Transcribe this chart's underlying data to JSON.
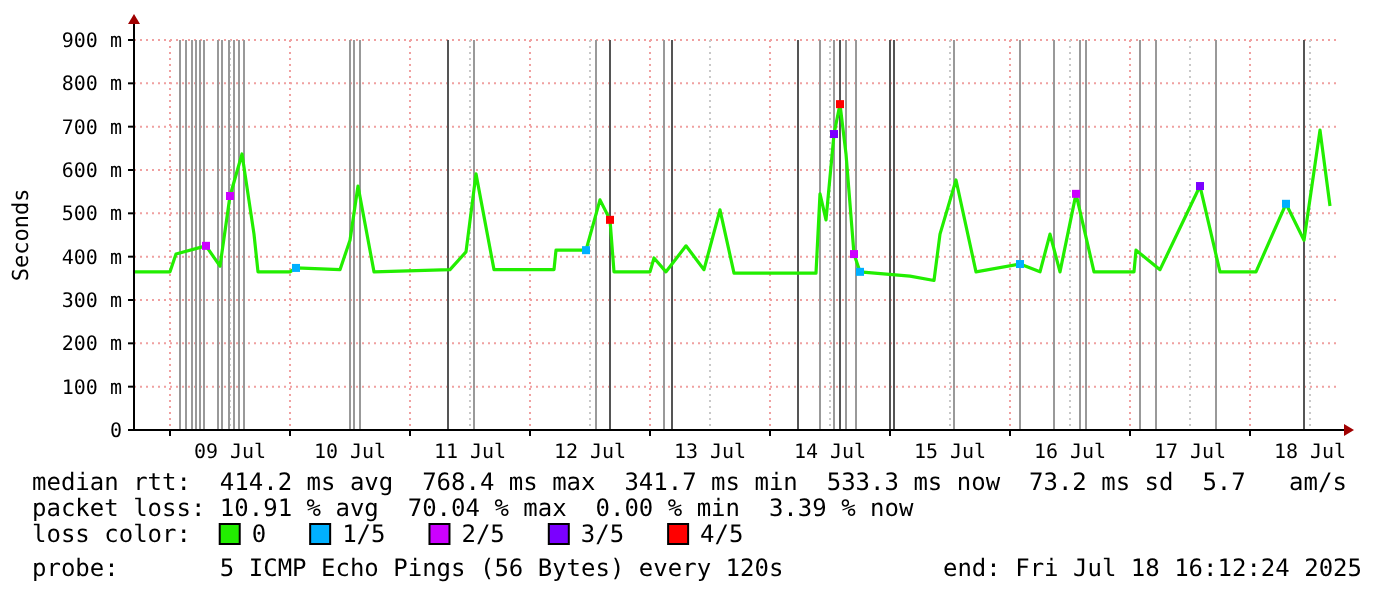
{
  "chart_data": {
    "type": "line",
    "ylabel": "Seconds",
    "xlim": [
      "2025-07-08T16:48",
      "2025-07-18T18:00"
    ],
    "xticks": [
      {
        "value": "2025-07-09T12:00",
        "label": "09 Jul"
      },
      {
        "value": "2025-07-10T12:00",
        "label": "10 Jul"
      },
      {
        "value": "2025-07-11T12:00",
        "label": "11 Jul"
      },
      {
        "value": "2025-07-12T12:00",
        "label": "12 Jul"
      },
      {
        "value": "2025-07-13T12:00",
        "label": "13 Jul"
      },
      {
        "value": "2025-07-14T12:00",
        "label": "14 Jul"
      },
      {
        "value": "2025-07-15T12:00",
        "label": "15 Jul"
      },
      {
        "value": "2025-07-16T12:00",
        "label": "16 Jul"
      },
      {
        "value": "2025-07-17T12:00",
        "label": "17 Jul"
      },
      {
        "value": "2025-07-18T12:00",
        "label": "18 Jul"
      }
    ],
    "ylim": [
      0,
      900
    ],
    "yticks": [
      0,
      {
        "value": 100,
        "label": "100 m"
      },
      {
        "value": 200,
        "label": "200 m"
      },
      {
        "value": 300,
        "label": "300 m"
      },
      {
        "value": 400,
        "label": "400 m"
      },
      {
        "value": 500,
        "label": "500 m"
      },
      {
        "value": 600,
        "label": "600 m"
      },
      {
        "value": 700,
        "label": "700 m"
      },
      {
        "value": 800,
        "label": "800 m"
      },
      {
        "value": 900,
        "label": "900 m"
      }
    ],
    "grid": true,
    "legend": "bottom",
    "legend_title": "loss color:",
    "series": [
      {
        "name": "0",
        "type": "line",
        "color": "#22ee00",
        "x": [
          "2025-07-08T16:48",
          "2025-07-09T00:00",
          "2025-07-09T01:12",
          "2025-07-09T07:12",
          "2025-07-09T10:00",
          "2025-07-09T12:00",
          "2025-07-09T14:24",
          "2025-07-09T16:48",
          "2025-07-09T17:36",
          "2025-07-10T00:00",
          "2025-07-10T01:12",
          "2025-07-10T10:00",
          "2025-07-10T12:00",
          "2025-07-10T13:36",
          "2025-07-10T16:48",
          "2025-07-11T08:00",
          "2025-07-11T11:12",
          "2025-07-11T13:12",
          "2025-07-11T16:48",
          "2025-07-12T04:48",
          "2025-07-12T05:12",
          "2025-07-12T11:12",
          "2025-07-12T14:00",
          "2025-07-12T16:00",
          "2025-07-12T16:48",
          "2025-07-13T00:00",
          "2025-07-13T00:48",
          "2025-07-13T03:12",
          "2025-07-13T07:12",
          "2025-07-13T10:48",
          "2025-07-13T14:00",
          "2025-07-13T16:48",
          "2025-07-14T09:12",
          "2025-07-14T10:00",
          "2025-07-14T11:12",
          "2025-07-14T12:48",
          "2025-07-14T14:00",
          "2025-07-14T15:12",
          "2025-07-14T16:48",
          "2025-07-14T18:00",
          "2025-07-15T04:00",
          "2025-07-15T08:48",
          "2025-07-15T10:00",
          "2025-07-15T13:12",
          "2025-07-15T17:12",
          "2025-07-16T02:00",
          "2025-07-16T06:00",
          "2025-07-16T08:00",
          "2025-07-16T10:00",
          "2025-07-16T13:12",
          "2025-07-16T16:48",
          "2025-07-17T00:48",
          "2025-07-17T01:12",
          "2025-07-17T06:00",
          "2025-07-17T14:00",
          "2025-07-17T18:00",
          "2025-07-18T01:12",
          "2025-07-18T07:12",
          "2025-07-18T10:48",
          "2025-07-18T14:00",
          "2025-07-18T16:00"
        ],
        "values": [
          365,
          365,
          406,
          425,
          378,
          540,
          637,
          452,
          365,
          365,
          374,
          370,
          438,
          563,
          365,
          370,
          411,
          591,
          370,
          370,
          415,
          415,
          531,
          485,
          365,
          365,
          397,
          365,
          425,
          370,
          508,
          362,
          362,
          545,
          485,
          683,
          752,
          637,
          406,
          365,
          355,
          345,
          452,
          577,
          365,
          383,
          365,
          452,
          365,
          545,
          365,
          365,
          415,
          370,
          563,
          365,
          365,
          522,
          438,
          692,
          517
        ]
      },
      {
        "name": "1/5",
        "type": "scatter",
        "marker": "square",
        "color": "#00b0ff",
        "x": [
          "2025-07-10T01:12",
          "2025-07-12T11:12",
          "2025-07-14T18:00",
          "2025-07-16T02:00",
          "2025-07-18T07:12"
        ],
        "values": [
          374,
          415,
          365,
          383,
          522
        ]
      },
      {
        "name": "2/5",
        "type": "scatter",
        "marker": "square",
        "color": "#cc00ff",
        "x": [
          "2025-07-09T07:12",
          "2025-07-09T12:00",
          "2025-07-14T16:48",
          "2025-07-16T13:12"
        ],
        "values": [
          425,
          540,
          406,
          545
        ]
      },
      {
        "name": "3/5",
        "type": "scatter",
        "marker": "square",
        "color": "#7b00ff",
        "x": [
          "2025-07-14T12:48",
          "2025-07-17T14:00"
        ],
        "values": [
          683,
          563
        ]
      },
      {
        "name": "4/5",
        "type": "scatter",
        "marker": "square",
        "color": "#ff0000",
        "x": [
          "2025-07-12T16:00",
          "2025-07-14T14:00"
        ],
        "values": [
          485,
          752
        ]
      }
    ],
    "ref_lines": [
      {
        "axis": "x",
        "value": "2025-07-09T02:00",
        "color": "#999999"
      },
      {
        "axis": "x",
        "value": "2025-07-09T03:12",
        "color": "#999999"
      },
      {
        "axis": "x",
        "value": "2025-07-09T04:24",
        "color": "#999999"
      },
      {
        "axis": "x",
        "value": "2025-07-09T05:12",
        "color": "#999999"
      },
      {
        "axis": "x",
        "value": "2025-07-09T06:00",
        "color": "#999999"
      },
      {
        "axis": "x",
        "value": "2025-07-09T06:48",
        "color": "#999999"
      },
      {
        "axis": "x",
        "value": "2025-07-09T09:36",
        "color": "#999999"
      },
      {
        "axis": "x",
        "value": "2025-07-09T10:24",
        "color": "#999999"
      },
      {
        "axis": "x",
        "value": "2025-07-09T11:48",
        "color": "#999999"
      },
      {
        "axis": "x",
        "value": "2025-07-09T12:48",
        "color": "#999999"
      },
      {
        "axis": "x",
        "value": "2025-07-09T13:48",
        "color": "#999999"
      },
      {
        "axis": "x",
        "value": "2025-07-09T14:48",
        "color": "#999999"
      },
      {
        "axis": "x",
        "value": "2025-07-10T12:00",
        "color": "#999999"
      },
      {
        "axis": "x",
        "value": "2025-07-10T12:48",
        "color": "#999999"
      },
      {
        "axis": "x",
        "value": "2025-07-10T14:00",
        "color": "#999999"
      },
      {
        "axis": "x",
        "value": "2025-07-11T07:36",
        "color": "#555555"
      },
      {
        "axis": "x",
        "value": "2025-07-11T12:48",
        "color": "#999999"
      },
      {
        "axis": "x",
        "value": "2025-07-12T13:12",
        "color": "#999999"
      },
      {
        "axis": "x",
        "value": "2025-07-12T16:00",
        "color": "#555555"
      },
      {
        "axis": "x",
        "value": "2025-07-13T02:48",
        "color": "#999999"
      },
      {
        "axis": "x",
        "value": "2025-07-13T04:24",
        "color": "#555555"
      },
      {
        "axis": "x",
        "value": "2025-07-14T05:36",
        "color": "#555555"
      },
      {
        "axis": "x",
        "value": "2025-07-14T10:00",
        "color": "#999999"
      },
      {
        "axis": "x",
        "value": "2025-07-14T12:48",
        "color": "#999999"
      },
      {
        "axis": "x",
        "value": "2025-07-14T14:00",
        "color": "#555555"
      },
      {
        "axis": "x",
        "value": "2025-07-14T15:12",
        "color": "#999999"
      },
      {
        "axis": "x",
        "value": "2025-07-14T17:12",
        "color": "#999999"
      },
      {
        "axis": "x",
        "value": "2025-07-15T00:00",
        "color": "#555555"
      },
      {
        "axis": "x",
        "value": "2025-07-15T00:48",
        "color": "#555555"
      },
      {
        "axis": "x",
        "value": "2025-07-15T12:48",
        "color": "#999999"
      },
      {
        "axis": "x",
        "value": "2025-07-16T02:00",
        "color": "#999999"
      },
      {
        "axis": "x",
        "value": "2025-07-16T08:48",
        "color": "#999999"
      },
      {
        "axis": "x",
        "value": "2025-07-16T14:00",
        "color": "#999999"
      },
      {
        "axis": "x",
        "value": "2025-07-16T15:12",
        "color": "#999999"
      },
      {
        "axis": "x",
        "value": "2025-07-17T02:00",
        "color": "#999999"
      },
      {
        "axis": "x",
        "value": "2025-07-17T05:12",
        "color": "#999999"
      },
      {
        "axis": "x",
        "value": "2025-07-17T17:12",
        "color": "#999999"
      },
      {
        "axis": "x",
        "value": "2025-07-18T10:48",
        "color": "#555555"
      }
    ],
    "annotations": [
      "median rtt:  414.2 ms avg  768.4 ms max  341.7 ms min  533.3 ms now  73.2 ms sd  5.7   am/s",
      "packet loss: 10.91 % avg  70.04 % max  0.00 % min  3.39 % now",
      "probe:       5 ICMP Echo Pings (56 Bytes) every 120s",
      "end: Fri Jul 18 16:12:24 2025"
    ]
  }
}
